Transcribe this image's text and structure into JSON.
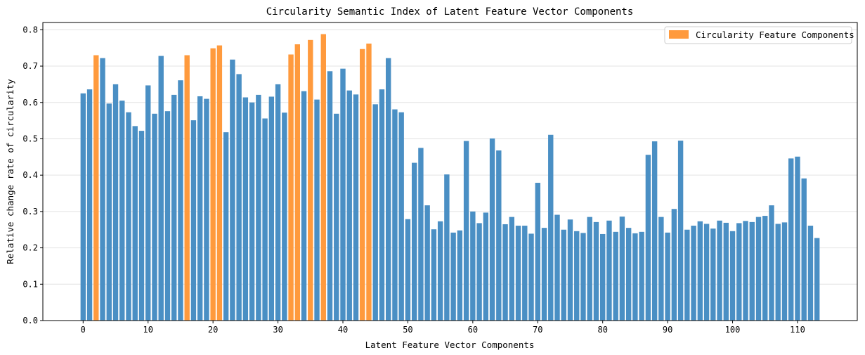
{
  "chart_data": {
    "type": "bar",
    "title": "Circularity Semantic Index of Latent Feature Vector Components",
    "xlabel": "Latent Feature Vector Components",
    "ylabel": "Relative change rate of circularity",
    "xlim": [
      -6.2,
      119.2
    ],
    "ylim": [
      0,
      0.82
    ],
    "x_ticks": [
      0,
      10,
      20,
      30,
      40,
      50,
      60,
      70,
      80,
      90,
      100,
      110
    ],
    "y_ticks": [
      0.0,
      0.1,
      0.2,
      0.3,
      0.4,
      0.5,
      0.6,
      0.7,
      0.8
    ],
    "y_tick_labels": [
      "0.0",
      "0.1",
      "0.2",
      "0.3",
      "0.4",
      "0.5",
      "0.6",
      "0.7",
      "0.8"
    ],
    "grid": "horizontal",
    "legend_position": "top-right",
    "colors": {
      "default": "#4a8fc4",
      "highlight": "#ff9a3d"
    },
    "highlight_series": "Circularity Feature Components",
    "highlight_indices": [
      2,
      16,
      20,
      21,
      32,
      33,
      35,
      37,
      43,
      44
    ],
    "values": [
      0.625,
      0.636,
      0.73,
      0.722,
      0.597,
      0.65,
      0.605,
      0.573,
      0.535,
      0.522,
      0.647,
      0.569,
      0.728,
      0.576,
      0.621,
      0.661,
      0.73,
      0.551,
      0.617,
      0.61,
      0.749,
      0.757,
      0.518,
      0.718,
      0.678,
      0.614,
      0.6,
      0.621,
      0.556,
      0.616,
      0.65,
      0.572,
      0.732,
      0.76,
      0.631,
      0.772,
      0.608,
      0.788,
      0.686,
      0.569,
      0.693,
      0.633,
      0.622,
      0.747,
      0.762,
      0.595,
      0.636,
      0.722,
      0.581,
      0.573,
      0.279,
      0.434,
      0.475,
      0.317,
      0.251,
      0.273,
      0.402,
      0.242,
      0.248,
      0.494,
      0.3,
      0.268,
      0.297,
      0.501,
      0.468,
      0.265,
      0.285,
      0.261,
      0.261,
      0.239,
      0.379,
      0.255,
      0.511,
      0.291,
      0.25,
      0.278,
      0.246,
      0.241,
      0.285,
      0.271,
      0.238,
      0.275,
      0.244,
      0.286,
      0.255,
      0.24,
      0.244,
      0.456,
      0.493,
      0.285,
      0.242,
      0.307,
      0.495,
      0.25,
      0.261,
      0.273,
      0.266,
      0.253,
      0.275,
      0.269,
      0.246,
      0.268,
      0.274,
      0.271,
      0.285,
      0.288,
      0.317,
      0.266,
      0.27,
      0.446,
      0.451,
      0.391,
      0.261,
      0.227
    ]
  }
}
